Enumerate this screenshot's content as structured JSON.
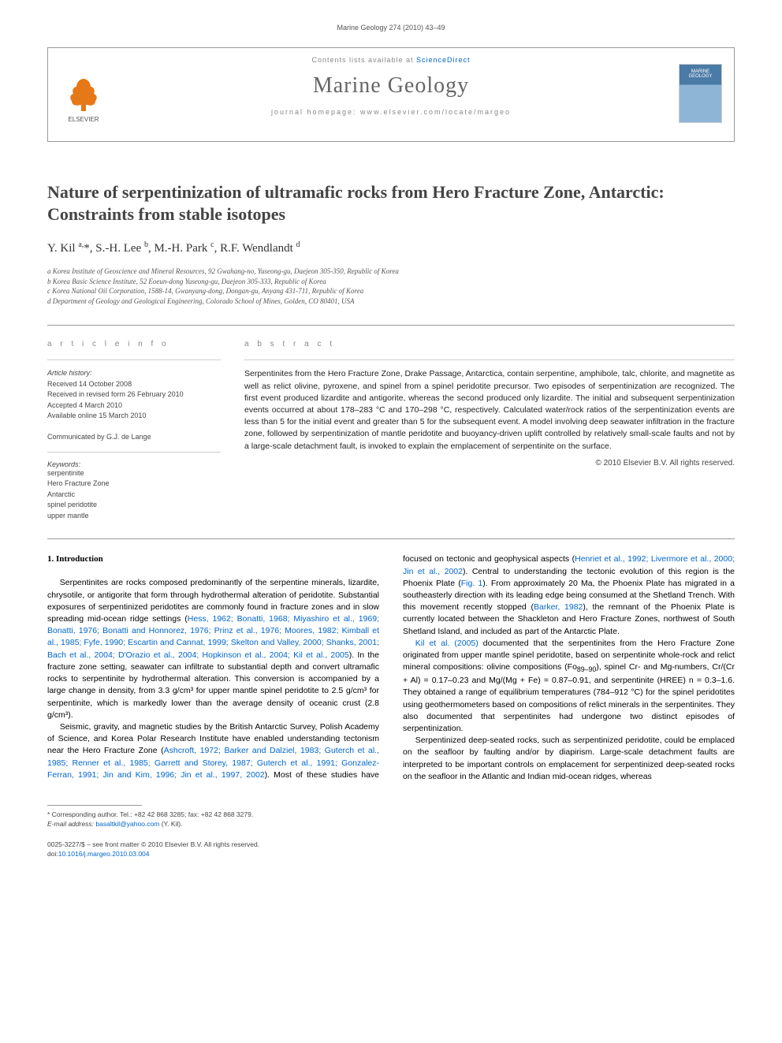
{
  "running_header": "Marine Geology 274 (2010) 43–49",
  "journal_box": {
    "contents_prefix": "Contents lists available at ",
    "contents_link": "ScienceDirect",
    "journal_name": "Marine Geology",
    "homepage_prefix": "journal homepage: ",
    "homepage_url": "www.elsevier.com/locate/margeo",
    "publisher_label": "ELSEVIER",
    "cover_text": "MARINE GEOLOGY"
  },
  "title": "Nature of serpentinization of ultramafic rocks from Hero Fracture Zone, Antarctic: Constraints from stable isotopes",
  "authors_html": "Y. Kil <sup>a,</sup>*, S.-H. Lee <sup>b</sup>, M.-H. Park <sup>c</sup>, R.F. Wendlandt <sup>d</sup>",
  "affiliations": [
    "a Korea Institute of Geoscience and Mineral Resources, 92 Gwahang-no, Yuseong-gu, Daejeon 305-350, Republic of Korea",
    "b Korea Basic Science Institute, 52 Eoeun-dong Yuseong-gu, Daejeon 305-333, Republic of Korea",
    "c Korea National Oil Corporation, 1588-14, Gwanyang-dong, Dongan-gu, Anyang 431-711, Republic of Korea",
    "d Department of Geology and Geological Engineering, Colorado School of Mines, Golden, CO 80401, USA"
  ],
  "article_info_heading": "A R T I C L E   I N F O",
  "abstract_heading": "A B S T R A C T",
  "history_label": "Article history:",
  "history": [
    "Received 14 October 2008",
    "Received in revised form 26 February 2010",
    "Accepted 4 March 2010",
    "Available online 15 March 2010"
  ],
  "communicated": "Communicated by G.J. de Lange",
  "keywords_label": "Keywords:",
  "keywords": [
    "serpentinite",
    "Hero Fracture Zone",
    "Antarctic",
    "spinel peridotite",
    "upper mantle"
  ],
  "abstract": "Serpentinites from the Hero Fracture Zone, Drake Passage, Antarctica, contain serpentine, amphibole, talc, chlorite, and magnetite as well as relict olivine, pyroxene, and spinel from a spinel peridotite precursor. Two episodes of serpentinization are recognized. The first event produced lizardite and antigorite, whereas the second produced only lizardite. The initial and subsequent serpentinization events occurred at about 178–283 °C and 170–298 °C, respectively. Calculated water/rock ratios of the serpentinization events are less than 5 for the initial event and greater than 5 for the subsequent event. A model involving deep seawater infiltration in the fracture zone, followed by serpentinization of mantle peridotite and buoyancy-driven uplift controlled by relatively small-scale faults and not by a large-scale detachment fault, is invoked to explain the emplacement of serpentinite on the surface.",
  "abstract_copyright": "© 2010 Elsevier B.V. All rights reserved.",
  "section1_heading": "1. Introduction",
  "intro_paragraphs": [
    "Serpentinites are rocks composed predominantly of the serpentine minerals, lizardite, chrysotile, or antigorite that form through hydrothermal alteration of peridotite. Substantial exposures of serpentinized peridotites are commonly found in fracture zones and in slow spreading mid-ocean ridge settings (<span class=\"ref\">Hess, 1962; Bonatti, 1968; Miyashiro et al., 1969; Bonatti, 1976; Bonatti and Honnorez, 1976; Prinz et al., 1976; Moores, 1982; Kimball et al., 1985; Fyfe, 1990; Escartin and Cannat, 1999; Skelton and Valley, 2000; Shanks, 2001; Bach et al., 2004; D'Orazio et al., 2004; Hopkinson et al., 2004; Kil et al., 2005</span>). In the fracture zone setting, seawater can infiltrate to substantial depth and convert ultramafic rocks to serpentinite by hydrothermal alteration. This conversion is accompanied by a large change in density, from 3.3 g/cm³ for upper mantle spinel peridotite to 2.5 g/cm³ for serpentinite, which is markedly lower than the average density of oceanic crust (2.8 g/cm³).",
    "Seismic, gravity, and magnetic studies by the British Antarctic Survey, Polish Academy of Science, and Korea Polar Research Institute have enabled understanding tectonism near the Hero Fracture Zone (<span class=\"ref\">Ashcroft, 1972; Barker and Dalziel, 1983; Guterch et al., 1985; Renner et al., 1985; Garrett and Storey, 1987; Guterch et al., 1991; Gonzalez-Ferran, 1991; Jin and Kim, 1996; Jin et al., 1997, 2002</span>). Most of these studies have focused on tectonic and geophysical aspects (<span class=\"ref\">Henriet et al., 1992; Livermore et al., 2000; Jin et al., 2002</span>). Central to understanding the tectonic evolution of this region is the Phoenix Plate (<span class=\"ref\">Fig. 1</span>). From approximately 20 Ma, the Phoenix Plate has migrated in a southeasterly direction with its leading edge being consumed at the Shetland Trench. With this movement recently stopped (<span class=\"ref\">Barker, 1982</span>), the remnant of the Phoenix Plate is currently located between the Shackleton and Hero Fracture Zones, northwest of South Shetland Island, and included as part of the Antarctic Plate.",
    "<span class=\"ref\">Kil et al. (2005)</span> documented that the serpentinites from the Hero Fracture Zone originated from upper mantle spinel peridotite, based on serpentinite whole-rock and relict mineral compositions: olivine compositions (Fo<sub>89–90</sub>), spinel Cr- and Mg-numbers, Cr/(Cr + Al) = 0.17–0.23 and Mg/(Mg + Fe) = 0.87–0.91, and serpentinite (HREE) n = 0.3–1.6. They obtained a range of equilibrium temperatures (784–912 °C) for the spinel peridotites using geothermometers based on compositions of relict minerals in the serpentinites. They also documented that serpentinites had undergone two distinct episodes of serpentinization.",
    "Serpentinized deep-seated rocks, such as serpentinized peridotite, could be emplaced on the seafloor by faulting and/or by diapirism. Large-scale detachment faults are interpreted to be important controls on emplacement for serpentinized deep-seated rocks on the seafloor in the Atlantic and Indian mid-ocean ridges, whereas"
  ],
  "corresponding": {
    "label": "* Corresponding author.",
    "tel": " Tel.: +82 42 868 3285; fax: +82 42 868 3279.",
    "email_label": "E-mail address: ",
    "email": "basaltkil@yahoo.com",
    "suffix": " (Y. Kil)."
  },
  "copyright_footer": {
    "line1": "0025-3227/$ – see front matter © 2010 Elsevier B.V. All rights reserved.",
    "doi_prefix": "doi:",
    "doi": "10.1016/j.margeo.2010.03.004"
  },
  "colors": {
    "link": "#0066cc",
    "rule": "#999999",
    "muted": "#888888",
    "journal_title": "#666666"
  }
}
